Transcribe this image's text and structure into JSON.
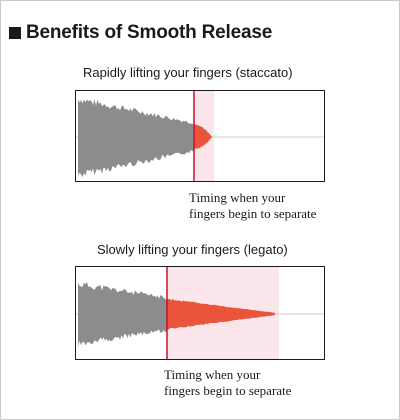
{
  "title": "Benefits of Smooth Release",
  "staccato": {
    "label": "Rapidly lifting your fingers (staccato)",
    "caption_line1": "Timing when your",
    "caption_line2": "fingers begin to separate"
  },
  "legato": {
    "label": "Slowly lifting your fingers (legato)",
    "caption_line1": "Timing when your",
    "caption_line2": "fingers begin to separate"
  },
  "colors": {
    "waveform_gray": "#8c8c8c",
    "release_orange": "#e8553a",
    "timing_line": "#c8102e",
    "highlight_pink": "#fbe6ec",
    "frame_border": "#c9c9c9",
    "text": "#1a1a1a"
  }
}
